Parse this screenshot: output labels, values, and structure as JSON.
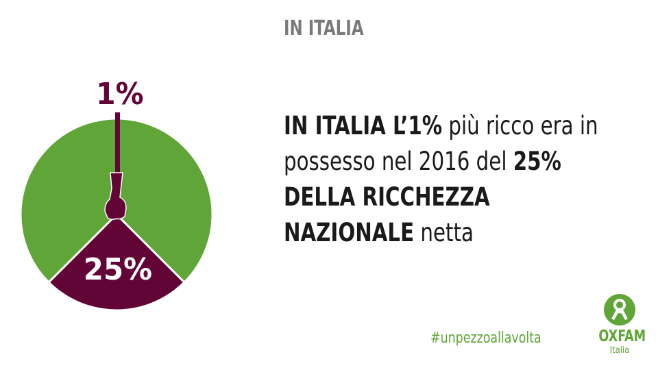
{
  "title": "IN ITALIA",
  "headline": {
    "bold1": "IN ITALIA L’1%",
    "text1": " più ricco era in possesso nel 2016 del ",
    "bold2": "25% DELLA RICCHEZZA NAZIONALE",
    "text2": " netta"
  },
  "hashtag": "#unpezzoallavolta",
  "logo": {
    "name": "OXFAM",
    "sub": "Italia"
  },
  "colors": {
    "green": "#5fa537",
    "maroon": "#620536",
    "gray": "#7a7a7a"
  },
  "chart_data": {
    "type": "pie",
    "title": "",
    "slices": [
      {
        "label": "25%",
        "value": 25,
        "color": "#620536",
        "description": "ricchezza nazionale netta dell'1%"
      },
      {
        "label": "",
        "value": 75,
        "color": "#5fa537"
      }
    ],
    "pointer_label": "1%",
    "pointer_value": 1
  }
}
